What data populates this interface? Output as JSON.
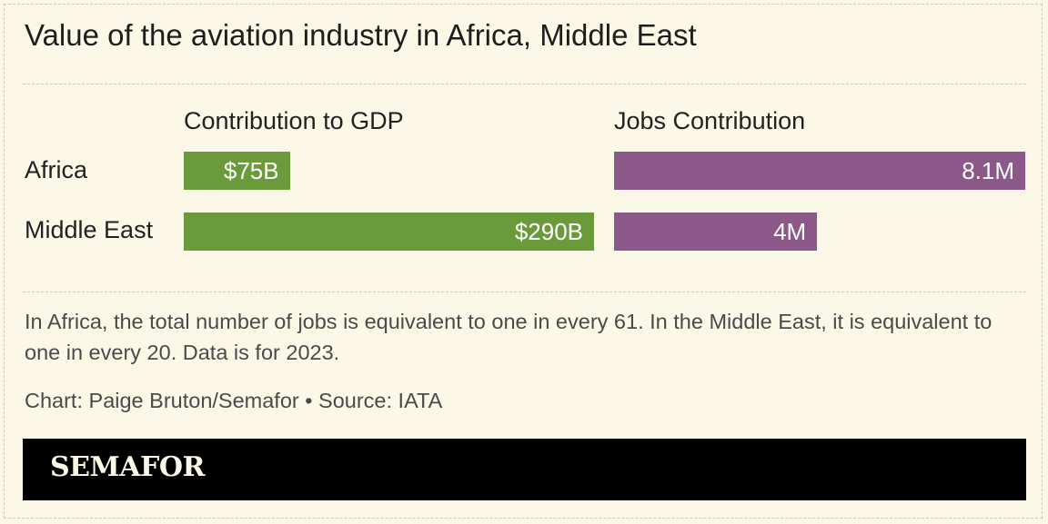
{
  "title": "Value of the aviation industry in Africa, Middle East",
  "chart_data": {
    "type": "bar",
    "orientation": "horizontal",
    "categories": [
      "Africa",
      "Middle East"
    ],
    "panels": [
      {
        "title": "Contribution to GDP",
        "values": [
          75,
          290
        ],
        "labels": [
          "$75B",
          "$290B"
        ],
        "color": "#6a9a3a"
      },
      {
        "title": "Jobs Contribution",
        "values": [
          8.1,
          4
        ],
        "labels": [
          "8.1M",
          "4M"
        ],
        "color": "#8c5889"
      }
    ]
  },
  "note": "In Africa, the total number of jobs is equivalent to one in every 61. In the Middle East, it is equivalent to one in every 20. Data is for 2023.",
  "credit": "Chart: Paige Bruton/Semafor • Source: IATA",
  "brand": "SEMAFOR",
  "colors": {
    "background": "#fbf8e7",
    "gdp": "#6a9a3a",
    "jobs": "#8c5889",
    "footer": "#000000"
  }
}
